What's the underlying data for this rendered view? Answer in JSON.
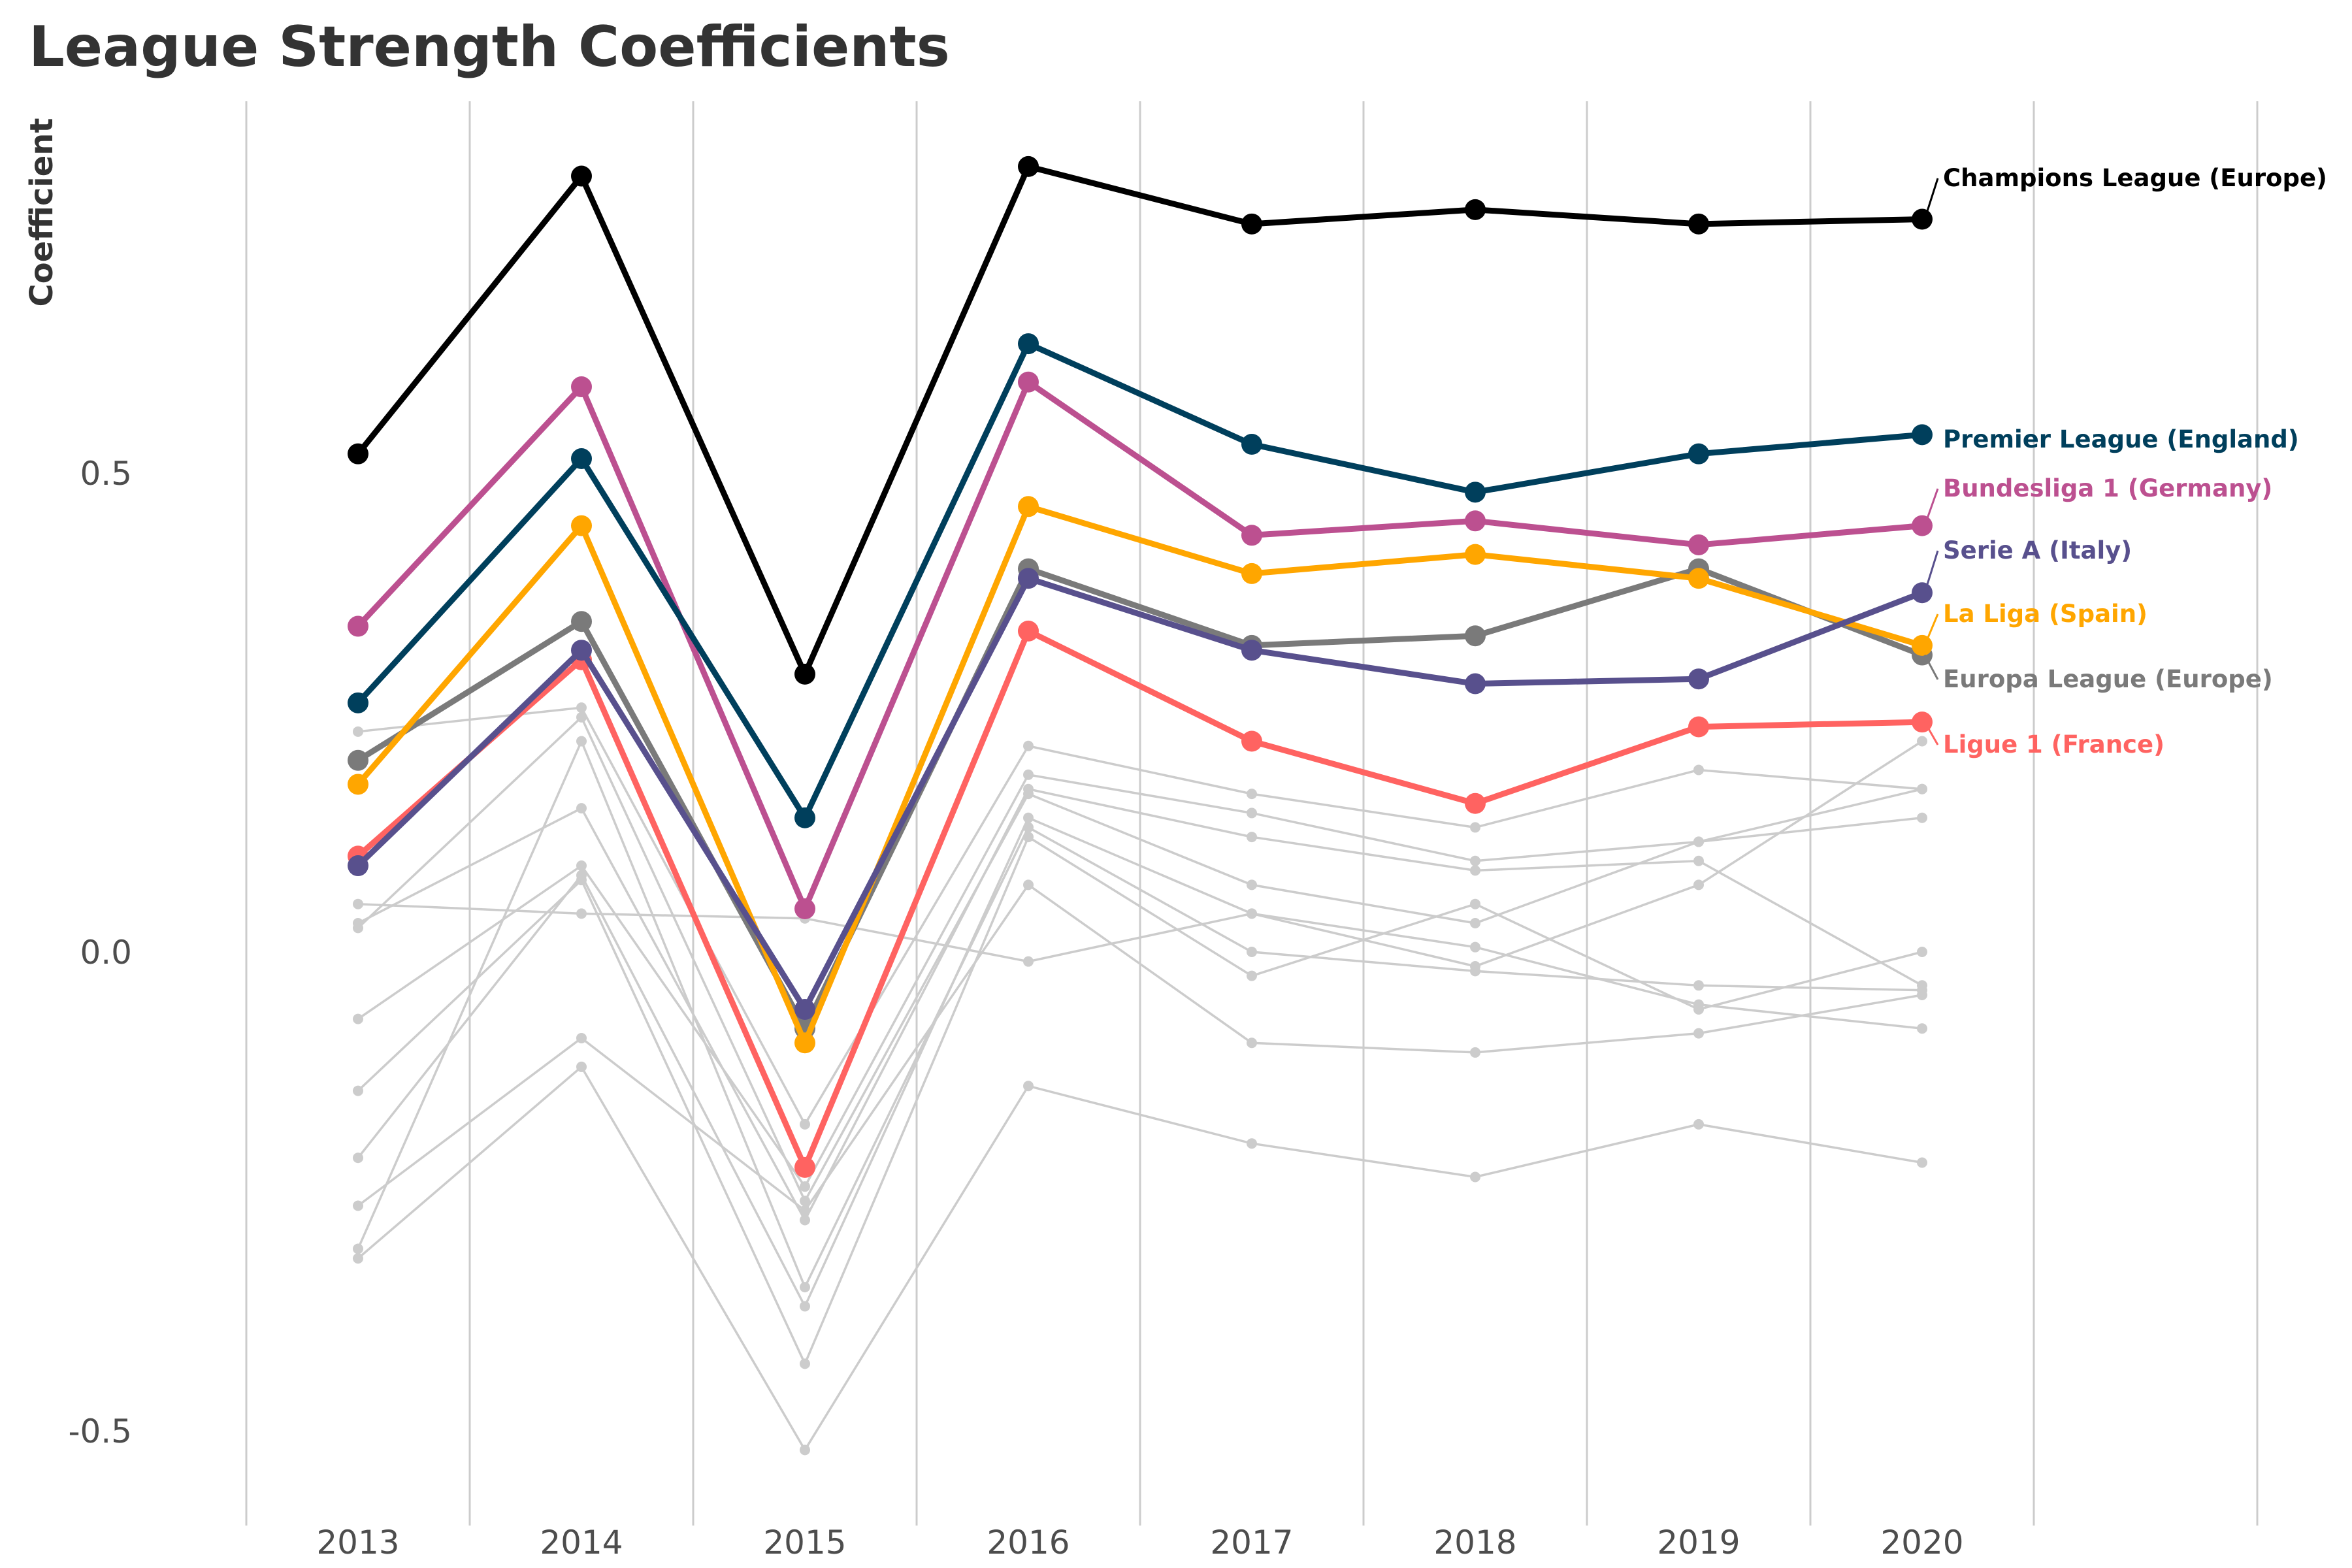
{
  "chart_data": {
    "type": "line",
    "title": "League Strength Coefficients",
    "xlabel": "",
    "ylabel": "Coefficient",
    "x": [
      2013,
      2014,
      2015,
      2016,
      2017,
      2018,
      2019,
      2020
    ],
    "ylim": [
      -0.6,
      0.87
    ],
    "y_ticks": [
      {
        "value": 0.5,
        "label": "0.5"
      },
      {
        "value": 0.0,
        "label": "0.0"
      },
      {
        "value": -0.5,
        "label": "-0.5"
      }
    ],
    "grid": "vertical",
    "legend": "direct labels at right",
    "series": [
      {
        "name": "Champions League (Europe)",
        "color": "#000000",
        "values": [
          0.52,
          0.81,
          0.29,
          0.82,
          0.76,
          0.775,
          0.76,
          0.765
        ]
      },
      {
        "name": "Premier League (England)",
        "color": "#003f5c",
        "values": [
          0.26,
          0.515,
          0.14,
          0.635,
          0.53,
          0.48,
          0.52,
          0.54
        ]
      },
      {
        "name": "Bundesliga 1 (Germany)",
        "color": "#bc5090",
        "values": [
          0.34,
          0.59,
          0.045,
          0.595,
          0.435,
          0.45,
          0.425,
          0.445
        ]
      },
      {
        "name": "Serie A (Italy)",
        "color": "#58508d",
        "values": [
          0.09,
          0.315,
          -0.06,
          0.39,
          0.315,
          0.28,
          0.285,
          0.375
        ]
      },
      {
        "name": "La Liga (Spain)",
        "color": "#ffa600",
        "values": [
          0.175,
          0.445,
          -0.095,
          0.465,
          0.395,
          0.415,
          0.39,
          0.32
        ]
      },
      {
        "name": "Europa League (Europe)",
        "color": "#7a7a7a",
        "values": [
          0.2,
          0.345,
          -0.08,
          0.4,
          0.32,
          0.33,
          0.4,
          0.31
        ]
      },
      {
        "name": "Ligue 1 (France)",
        "color": "#ff6361",
        "values": [
          0.1,
          0.305,
          -0.225,
          0.335,
          0.22,
          0.155,
          0.235,
          0.24
        ]
      }
    ],
    "background_series": [
      [
        0.23,
        0.255,
        -0.18,
        0.215,
        0.165,
        0.13,
        0.19,
        0.17
      ],
      [
        0.05,
        0.04,
        0.035,
        -0.01,
        0.04,
        0.005,
        -0.055,
        -0.08
      ],
      [
        -0.07,
        0.09,
        -0.245,
        0.185,
        0.145,
        0.095,
        0.115,
        0.14
      ],
      [
        0.03,
        0.15,
        -0.28,
        0.17,
        0.12,
        0.085,
        0.095,
        -0.035
      ],
      [
        0.025,
        0.245,
        -0.26,
        0.165,
        0.07,
        0.03,
        0.115,
        0.17
      ],
      [
        -0.215,
        0.08,
        -0.37,
        0.14,
        0.04,
        -0.015,
        0.07,
        0.22
      ],
      [
        -0.31,
        0.22,
        -0.35,
        0.13,
        0.0,
        -0.02,
        -0.035,
        -0.04
      ],
      [
        -0.145,
        0.075,
        -0.43,
        0.12,
        -0.025,
        0.05,
        -0.06,
        0.0
      ],
      [
        -0.265,
        -0.09,
        -0.27,
        0.07,
        -0.095,
        -0.105,
        -0.085,
        -0.045
      ],
      [
        -0.32,
        -0.12,
        -0.52,
        -0.14,
        -0.2,
        -0.235,
        -0.18,
        -0.22
      ]
    ]
  },
  "colors": {
    "background_line": "#cccccc",
    "grid": "#cccccc",
    "tick_text": "#4d4d4d",
    "title_text": "#333333"
  }
}
